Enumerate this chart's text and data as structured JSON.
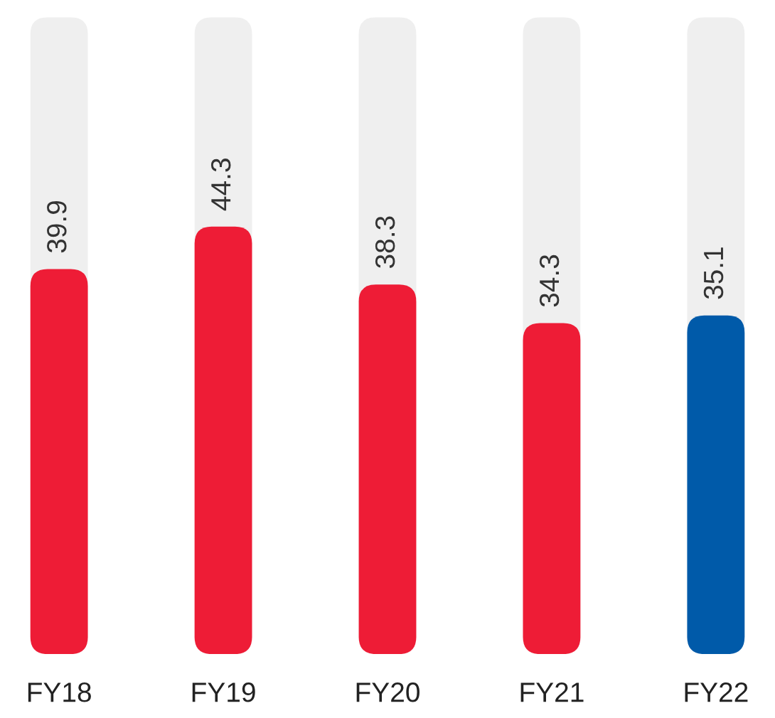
{
  "chart_data": {
    "type": "bar",
    "categories": [
      "FY18",
      "FY19",
      "FY20",
      "FY21",
      "FY22"
    ],
    "values": [
      39.9,
      44.3,
      38.3,
      34.3,
      35.1
    ],
    "colors": [
      "#ee1c36",
      "#ee1c36",
      "#ee1c36",
      "#ee1c36",
      "#005aa9"
    ],
    "ylim": [
      0,
      66
    ],
    "data_labels": true,
    "grid": false,
    "tick_labels": "x"
  }
}
